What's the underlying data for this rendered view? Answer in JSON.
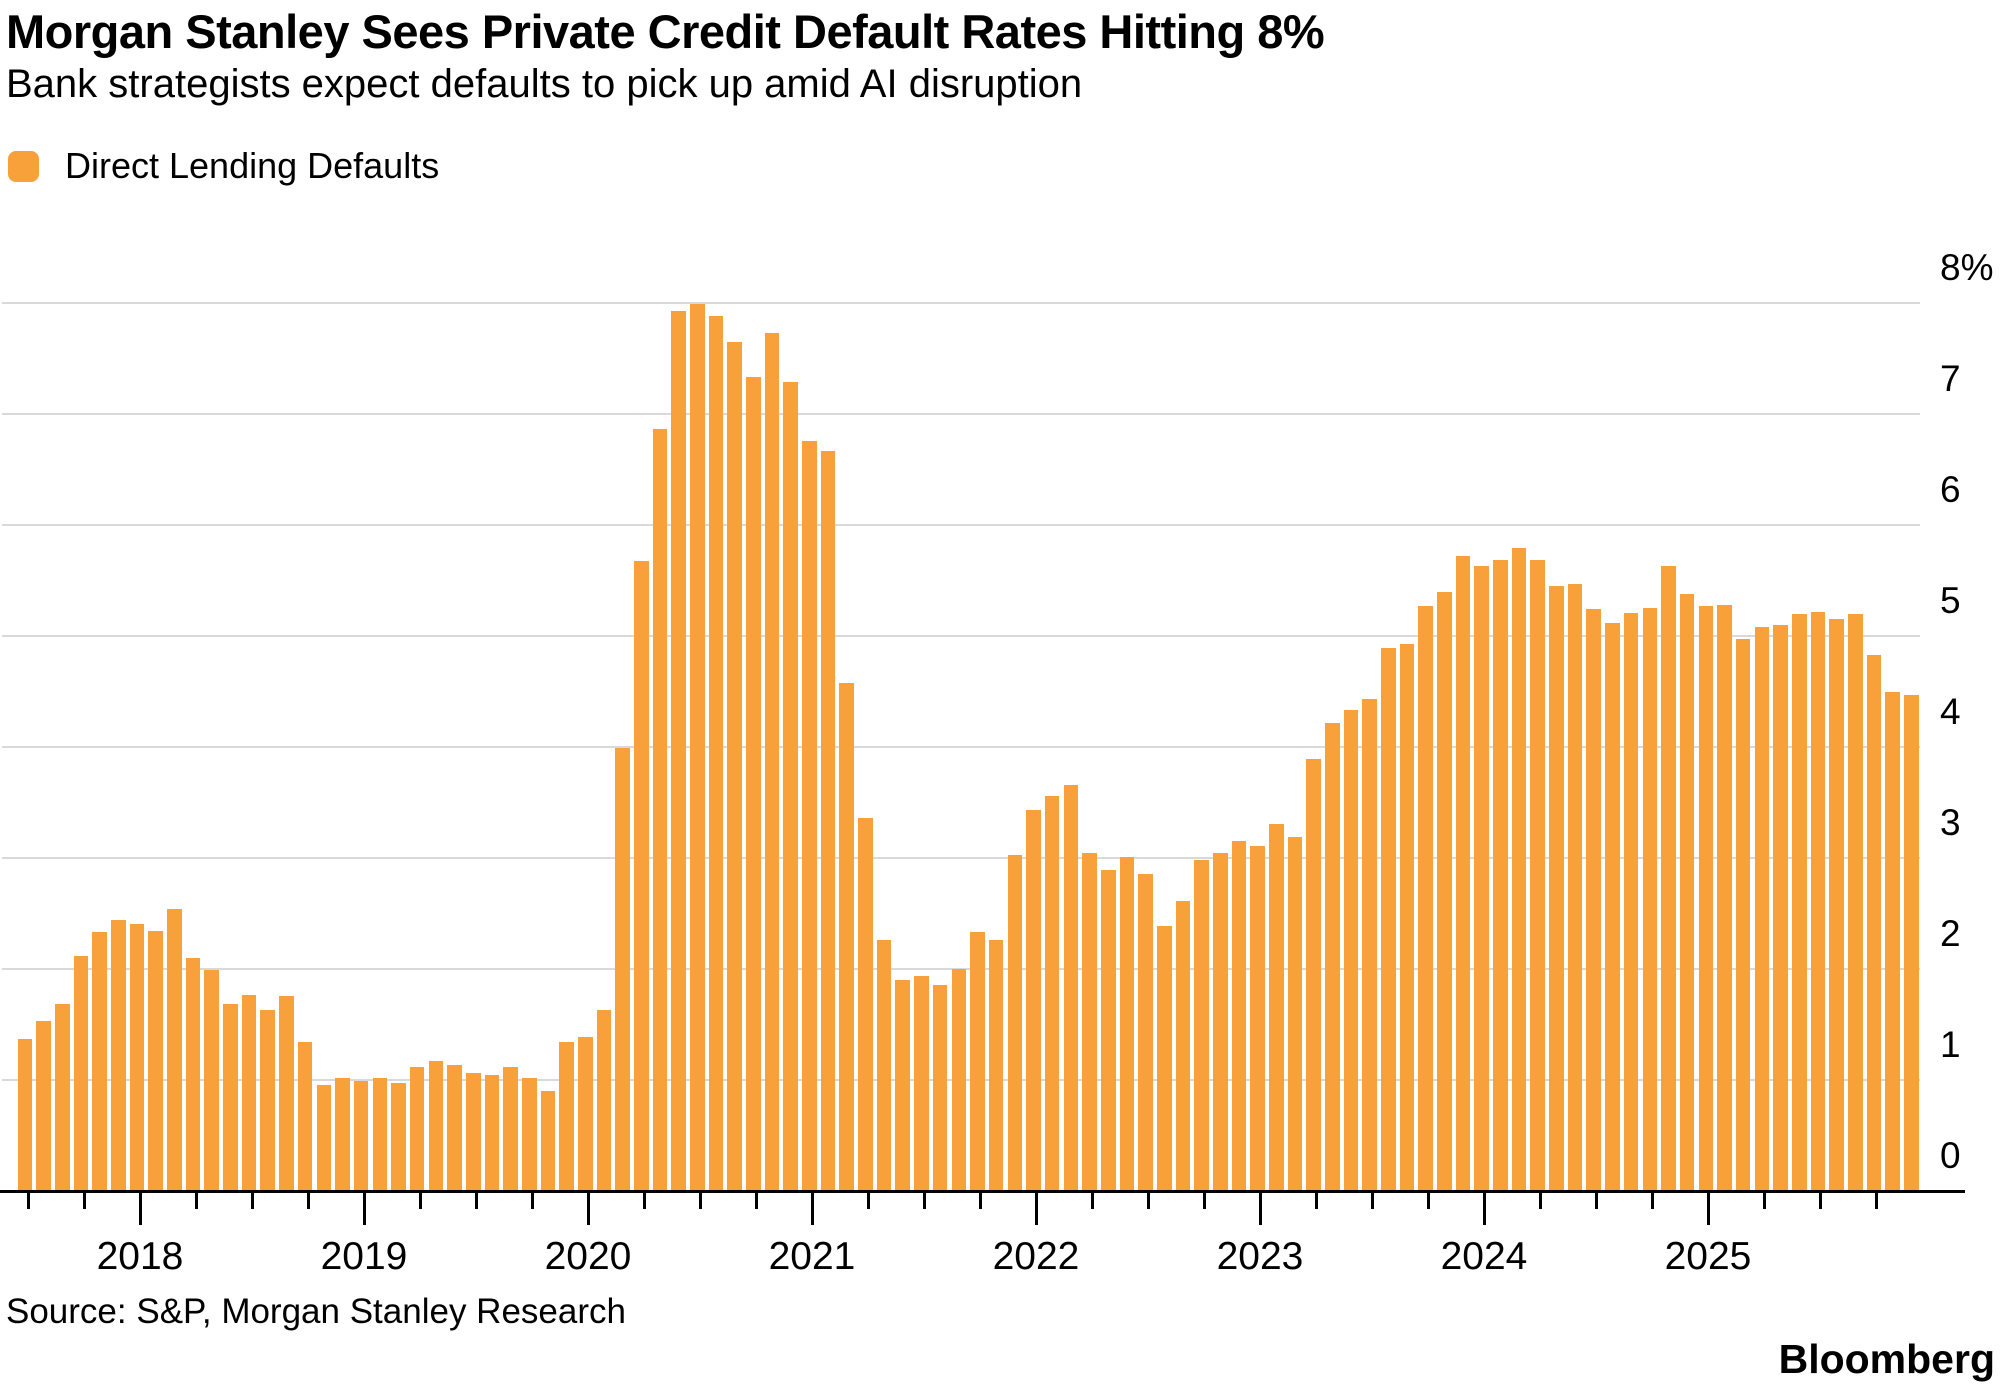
{
  "header": {
    "title": "Morgan Stanley Sees Private Credit Default Rates Hitting 8%",
    "subtitle": "Bank strategists expect defaults to pick up amid AI disruption"
  },
  "legend": {
    "label": "Direct Lending Defaults"
  },
  "footer": {
    "source": "Source: S&P, Morgan Stanley Research",
    "brand": "Bloomberg"
  },
  "colors": {
    "bar": "#F8A13B",
    "grid": "#D9D9D9",
    "axis": "#000000",
    "text": "#000000",
    "background": "#FFFFFF"
  },
  "chart_data": {
    "type": "bar",
    "title": "Morgan Stanley Sees Private Credit Default Rates Hitting 8%",
    "subtitle": "Bank strategists expect defaults to pick up amid AI disruption",
    "series_name": "Direct Lending Defaults",
    "unit": "percent",
    "frequency": "monthly",
    "start_month": "2017-07",
    "end_month": "2025-12",
    "ylim": [
      0,
      8
    ],
    "grid": "horizontal",
    "legend_position": "top-left",
    "y_axis_side": "right",
    "y_tick_labels": [
      "8%",
      "7",
      "6",
      "5",
      "4",
      "3",
      "2",
      "1",
      "0"
    ],
    "x_tick_years": [
      "2018",
      "2019",
      "2020",
      "2021",
      "2022",
      "2023",
      "2024",
      "2025"
    ],
    "values": [
      1.36,
      1.52,
      1.68,
      2.11,
      2.32,
      2.43,
      2.4,
      2.33,
      2.53,
      2.09,
      1.98,
      1.68,
      1.76,
      1.62,
      1.75,
      1.33,
      0.95,
      1.01,
      0.98,
      1.01,
      0.96,
      1.11,
      1.16,
      1.13,
      1.05,
      1.04,
      1.11,
      1.01,
      0.89,
      1.33,
      1.38,
      1.62,
      3.98,
      5.67,
      6.86,
      7.92,
      7.98,
      7.87,
      7.64,
      7.32,
      7.72,
      7.28,
      6.75,
      6.66,
      4.57,
      3.35,
      2.25,
      1.89,
      1.93,
      1.85,
      1.99,
      2.32,
      2.25,
      3.02,
      3.42,
      3.55,
      3.65,
      3.04,
      2.88,
      3.0,
      2.85,
      2.38,
      2.6,
      2.97,
      3.04,
      3.14,
      3.1,
      3.3,
      3.18,
      3.88,
      4.21,
      4.32,
      4.42,
      4.88,
      4.92,
      5.26,
      5.39,
      5.71,
      5.62,
      5.68,
      5.78,
      5.68,
      5.44,
      5.46,
      5.23,
      5.11,
      5.2,
      5.24,
      5.62,
      5.37,
      5.26,
      5.27,
      4.96,
      5.07,
      5.09,
      5.19,
      5.21,
      5.14,
      5.19,
      4.82,
      4.49,
      4.46
    ]
  }
}
